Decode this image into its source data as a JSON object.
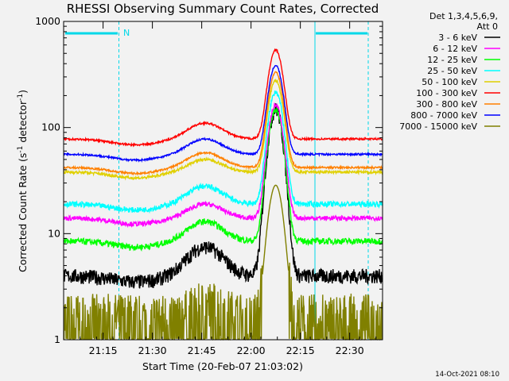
{
  "chart_data": {
    "type": "line",
    "title": "RHESSI Observing Summary Count Rates, Corrected",
    "xlabel": "Start Time (20-Feb-07 21:03:02)",
    "ylabel_main": "Corrected Count Rate (s",
    "ylabel_sup1": "-1",
    "ylabel_mid": " detector",
    "ylabel_sup2": "-1",
    "ylabel_end": ")",
    "y_scale": "log",
    "ylim": [
      1,
      1000
    ],
    "x_range_minutes": [
      0,
      97
    ],
    "x_ticks": [
      {
        "m": 12,
        "label": "21:15"
      },
      {
        "m": 27,
        "label": "21:30"
      },
      {
        "m": 42,
        "label": "21:45"
      },
      {
        "m": 57,
        "label": "22:00"
      },
      {
        "m": 72,
        "label": "22:15"
      },
      {
        "m": 87,
        "label": "22:30"
      }
    ],
    "y_ticks": [
      {
        "v": 1,
        "label": "1"
      },
      {
        "v": 10,
        "label": "10"
      },
      {
        "v": 100,
        "label": "100"
      },
      {
        "v": 1000,
        "label": "1000"
      }
    ],
    "legend_header": [
      "Det 1,3,4,5,6,9,",
      "Att 0"
    ],
    "legend_position": "right",
    "flag_label": "N",
    "series": [
      {
        "name": "3 - 6 keV",
        "color": "#000000",
        "base": 4,
        "hump": 3.5,
        "peak": 145,
        "noise": 0.16
      },
      {
        "name": "6 - 12 keV",
        "color": "#ff00ff",
        "base": 14,
        "hump": 5,
        "peak": 150,
        "noise": 0.05
      },
      {
        "name": "12 - 25 keV",
        "color": "#00ff00",
        "base": 8.5,
        "hump": 4.5,
        "peak": 140,
        "noise": 0.07
      },
      {
        "name": "25 - 50 keV",
        "color": "#00ffff",
        "base": 19,
        "hump": 9,
        "peak": 200,
        "noise": 0.06
      },
      {
        "name": "50 - 100 keV",
        "color": "#e0d000",
        "base": 38,
        "hump": 12,
        "peak": 240,
        "noise": 0.03
      },
      {
        "name": "100 - 300 keV",
        "color": "#ff0000",
        "base": 78,
        "hump": 32,
        "peak": 460,
        "noise": 0.02
      },
      {
        "name": "300 - 800 keV",
        "color": "#ff8000",
        "base": 42,
        "hump": 16,
        "peak": 290,
        "noise": 0.02
      },
      {
        "name": "800 - 7000 keV",
        "color": "#0000ff",
        "base": 56,
        "hump": 22,
        "peak": 330,
        "noise": 0.02
      },
      {
        "name": "7000 - 15000 keV",
        "color": "#808000",
        "base": 2,
        "hump": 0.8,
        "peak": 27,
        "noise": 0.35
      }
    ]
  }
}
